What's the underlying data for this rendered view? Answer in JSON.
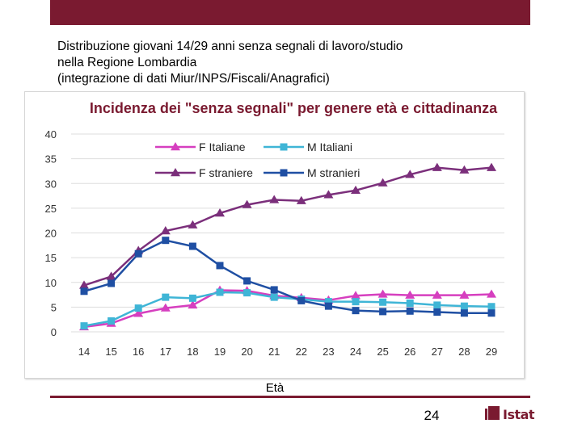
{
  "slide": {
    "title_lines": [
      "Distribuzione giovani 14/29 anni senza segnali di lavoro/studio",
      "nella Regione Lombardia",
      "(integrazione di dati Miur/INPS/Fiscali/Anagrafici)"
    ],
    "page_number": "24",
    "logo_text": "Istat"
  },
  "colors": {
    "brand": "#7a1a30",
    "f_italiane": "#d63fbf",
    "m_italiani": "#3fb5d6",
    "f_straniere": "#7b2f7b",
    "m_stranieri": "#1f4fa3",
    "grid": "#dddddd"
  },
  "chart_data": {
    "type": "line",
    "title": "Incidenza dei \"senza segnali\" per genere età e cittadinanza",
    "xlabel": "Età",
    "ylabel": "",
    "x": [
      14,
      15,
      16,
      17,
      18,
      19,
      20,
      21,
      22,
      23,
      24,
      25,
      26,
      27,
      28,
      29
    ],
    "ylim": [
      0,
      40
    ],
    "yticks": [
      0,
      5,
      10,
      15,
      20,
      25,
      30,
      35,
      40
    ],
    "grid": true,
    "legend_position": "top-left",
    "series": [
      {
        "name": "F Italiane",
        "marker": "triangle",
        "color": "#d63fbf",
        "values": [
          1.0,
          1.7,
          3.7,
          4.8,
          5.4,
          8.4,
          8.3,
          7.3,
          6.9,
          6.4,
          7.3,
          7.6,
          7.4,
          7.4,
          7.4,
          7.6
        ]
      },
      {
        "name": "M Italiani",
        "marker": "square",
        "color": "#3fb5d6",
        "values": [
          1.2,
          2.2,
          4.8,
          7.0,
          6.8,
          8.0,
          7.9,
          7.0,
          6.6,
          6.1,
          6.1,
          6.0,
          5.8,
          5.4,
          5.2,
          5.1
        ]
      },
      {
        "name": "F straniere",
        "marker": "triangle",
        "color": "#7b2f7b",
        "values": [
          9.4,
          11.2,
          16.4,
          20.4,
          21.6,
          24.0,
          25.7,
          26.7,
          26.5,
          27.7,
          28.6,
          30.1,
          31.8,
          33.2,
          32.7,
          33.2
        ]
      },
      {
        "name": "M stranieri",
        "marker": "square",
        "color": "#1f4fa3",
        "values": [
          8.2,
          9.8,
          15.8,
          18.5,
          17.3,
          13.4,
          10.3,
          8.5,
          6.3,
          5.2,
          4.3,
          4.1,
          4.2,
          4.0,
          3.8,
          3.8
        ]
      }
    ]
  }
}
